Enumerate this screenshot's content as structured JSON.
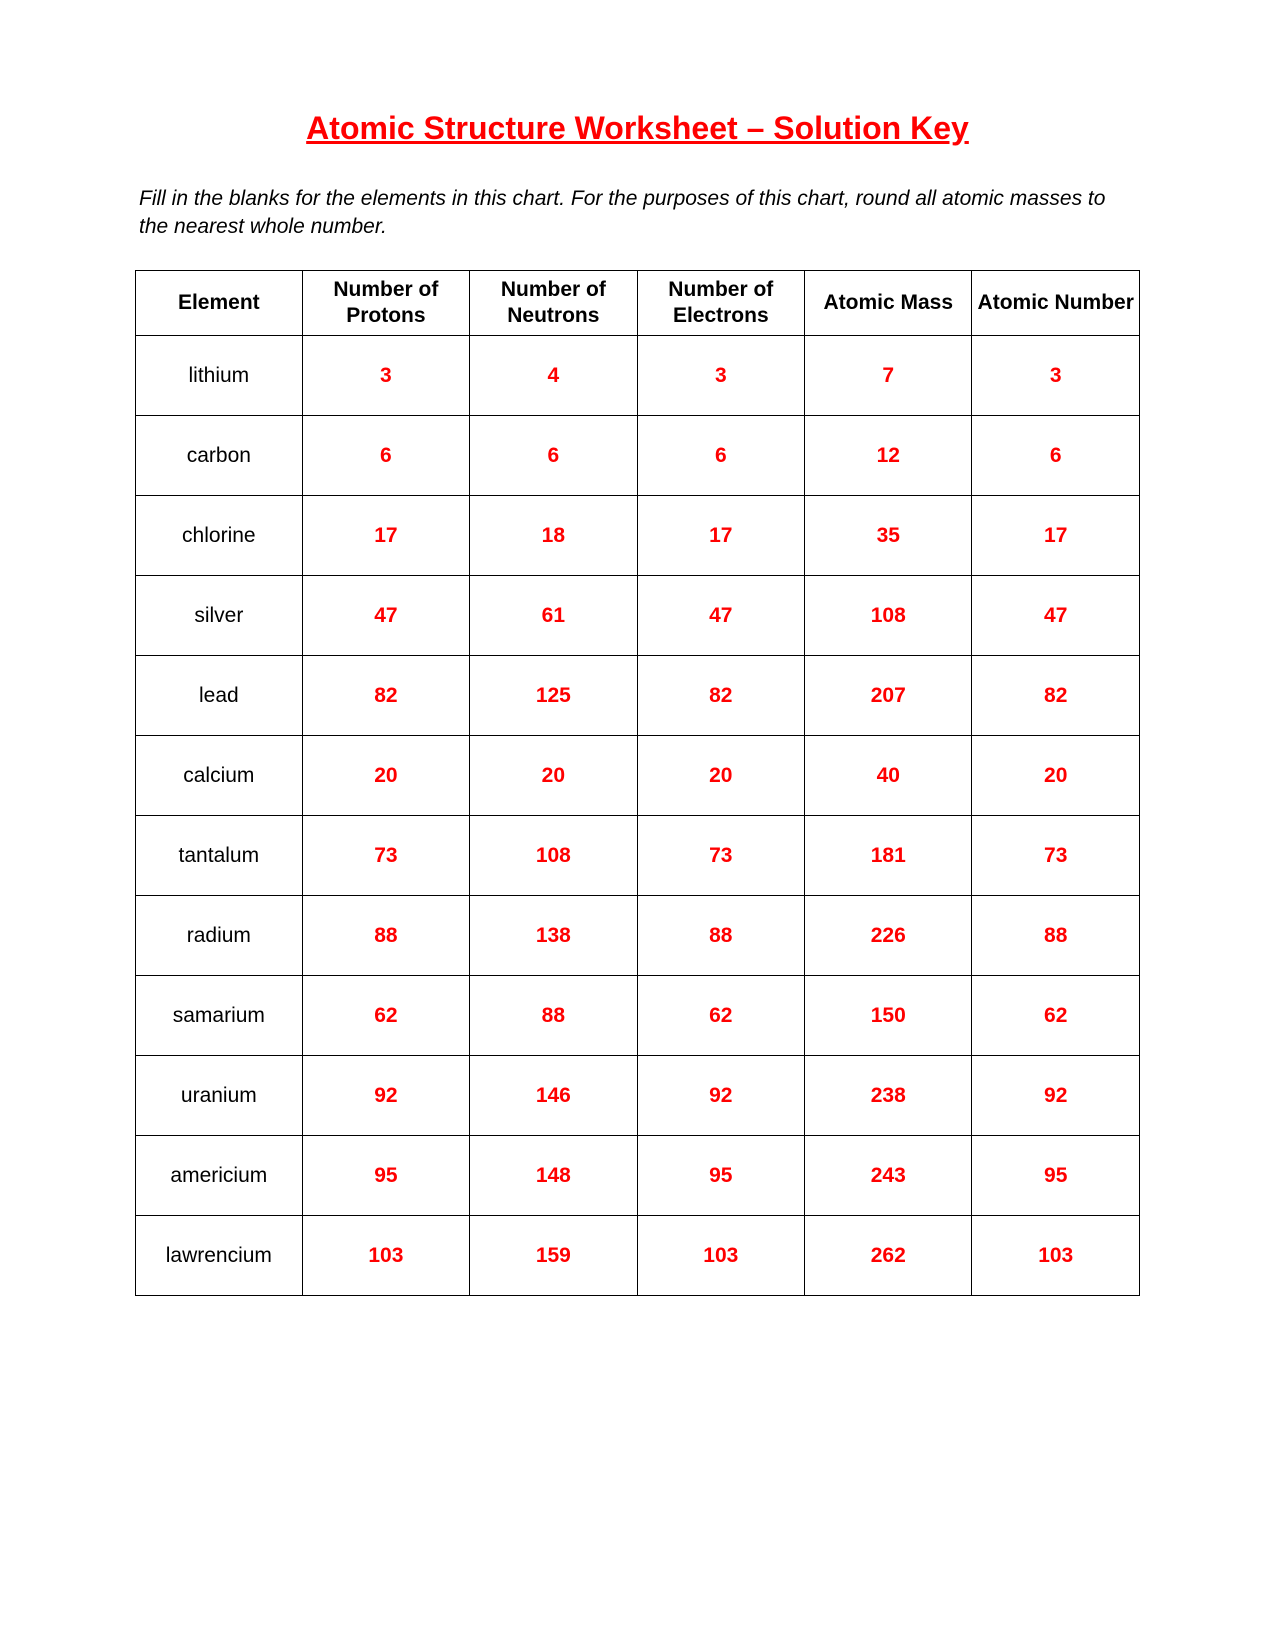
{
  "title": "Atomic Structure Worksheet – Solution Key",
  "instructions": "Fill in the blanks for the elements in this chart.  For the purposes of this chart, round all atomic masses to the nearest whole number.",
  "colors": {
    "title_color": "#ff0000",
    "answer_color": "#ff0000",
    "text_color": "#000000",
    "border_color": "#000000",
    "background_color": "#ffffff"
  },
  "typography": {
    "title_fontsize": 32,
    "instructions_fontsize": 21,
    "header_fontsize": 21,
    "cell_fontsize": 21,
    "font_family": "Arial"
  },
  "table": {
    "columns": [
      "Element",
      "Number of Protons",
      "Number of Neutrons",
      "Number of Electrons",
      "Atomic Mass",
      "Atomic Number"
    ],
    "rows": [
      {
        "element": "lithium",
        "protons": "3",
        "neutrons": "4",
        "electrons": "3",
        "mass": "7",
        "number": "3"
      },
      {
        "element": "carbon",
        "protons": "6",
        "neutrons": "6",
        "electrons": "6",
        "mass": "12",
        "number": "6"
      },
      {
        "element": "chlorine",
        "protons": "17",
        "neutrons": "18",
        "electrons": "17",
        "mass": "35",
        "number": "17"
      },
      {
        "element": "silver",
        "protons": "47",
        "neutrons": "61",
        "electrons": "47",
        "mass": "108",
        "number": "47"
      },
      {
        "element": "lead",
        "protons": "82",
        "neutrons": "125",
        "electrons": "82",
        "mass": "207",
        "number": "82"
      },
      {
        "element": "calcium",
        "protons": "20",
        "neutrons": "20",
        "electrons": "20",
        "mass": "40",
        "number": "20"
      },
      {
        "element": "tantalum",
        "protons": "73",
        "neutrons": "108",
        "electrons": "73",
        "mass": "181",
        "number": "73"
      },
      {
        "element": "radium",
        "protons": "88",
        "neutrons": "138",
        "electrons": "88",
        "mass": "226",
        "number": "88"
      },
      {
        "element": "samarium",
        "protons": "62",
        "neutrons": "88",
        "electrons": "62",
        "mass": "150",
        "number": "62"
      },
      {
        "element": "uranium",
        "protons": "92",
        "neutrons": "146",
        "electrons": "92",
        "mass": "238",
        "number": "92"
      },
      {
        "element": "americium",
        "protons": "95",
        "neutrons": "148",
        "electrons": "95",
        "mass": "243",
        "number": "95"
      },
      {
        "element": "lawrencium",
        "protons": "103",
        "neutrons": "159",
        "electrons": "103",
        "mass": "262",
        "number": "103"
      }
    ]
  }
}
